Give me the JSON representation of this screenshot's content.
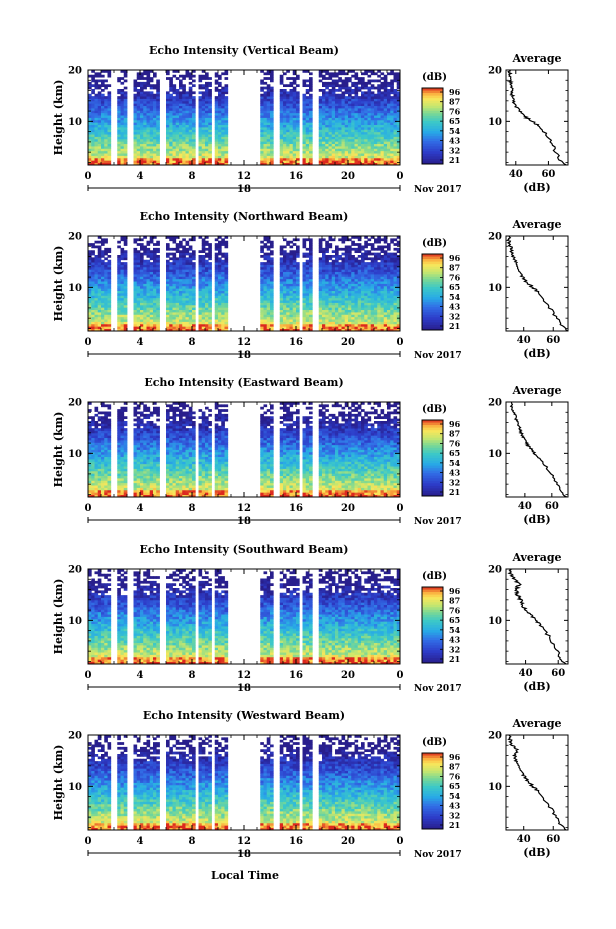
{
  "figure": {
    "xlabel": "Local Time",
    "ylabel": "Height (km)",
    "date_label": "Nov 2017",
    "colorbar_unit": "(dB)",
    "colorbar_ticks": [
      "96",
      "87",
      "76",
      "65",
      "54",
      "43",
      "32",
      "21"
    ],
    "colorbar_colors": [
      "#d7191c",
      "#f46d43",
      "#fdae61",
      "#fee08b",
      "#e6f598",
      "#abdda4",
      "#66c2a5",
      "#3288bd",
      "#2b3ec9",
      "#3b22a8",
      "#2a1f8f"
    ],
    "profile_title": "Average",
    "profile_xlabel": "(dB)"
  },
  "chart_data": [
    {
      "type": "heatmap",
      "title": "Echo Intensity (Vertical Beam)",
      "xlabel": "Local Time",
      "ylabel": "Height (km)",
      "x_ticks": [
        "0",
        "4",
        "8",
        "12",
        "16",
        "20",
        "0"
      ],
      "y_ticks": [
        "10",
        "20"
      ],
      "day_label": "18",
      "date_label": "Nov 2017",
      "xlim": [
        0,
        24
      ],
      "ylim": [
        1.5,
        20
      ],
      "colorbar": {
        "label": "(dB)",
        "ticks": [
          "96",
          "87",
          "76",
          "65",
          "54",
          "43",
          "32",
          "21"
        ]
      },
      "data_gaps_hours": [
        [
          1.8,
          2.3
        ],
        [
          3.1,
          3.6
        ],
        [
          5.6,
          6.1
        ],
        [
          8.2,
          8.6
        ],
        [
          9.4,
          9.8
        ],
        [
          10.8,
          13.2
        ],
        [
          14.2,
          14.7
        ],
        [
          16.3,
          16.6
        ],
        [
          17.2,
          17.8
        ]
      ],
      "profile": {
        "title": "Average",
        "xlabel": "(dB)",
        "x_ticks": [
          "40",
          "60"
        ],
        "xlim": [
          34,
          72
        ],
        "y_ticks": [
          "10",
          "20"
        ],
        "ylim": [
          1.5,
          20
        ],
        "height": [
          1.5,
          3,
          5,
          7,
          9,
          10,
          11,
          12,
          13,
          14,
          15,
          16,
          17,
          18,
          19,
          20
        ],
        "intensity": [
          70,
          66,
          63,
          60,
          55,
          50,
          45,
          42,
          40,
          39,
          38,
          37,
          38,
          36,
          37,
          36
        ]
      }
    },
    {
      "type": "heatmap",
      "title": "Echo Intensity (Northward Beam)",
      "xlabel": "Local Time",
      "ylabel": "Height (km)",
      "x_ticks": [
        "0",
        "4",
        "8",
        "12",
        "16",
        "20",
        "0"
      ],
      "y_ticks": [
        "10",
        "20"
      ],
      "day_label": "18",
      "date_label": "Nov 2017",
      "xlim": [
        0,
        24
      ],
      "ylim": [
        1.5,
        20
      ],
      "colorbar": {
        "label": "(dB)",
        "ticks": [
          "96",
          "87",
          "76",
          "65",
          "54",
          "43",
          "32",
          "21"
        ]
      },
      "data_gaps_hours": [
        [
          1.8,
          2.3
        ],
        [
          3.1,
          3.6
        ],
        [
          5.6,
          6.1
        ],
        [
          8.2,
          8.6
        ],
        [
          9.4,
          9.8
        ],
        [
          10.8,
          13.2
        ],
        [
          14.2,
          14.7
        ],
        [
          16.3,
          16.6
        ],
        [
          17.2,
          17.8
        ]
      ],
      "profile": {
        "title": "Average",
        "xlabel": "(dB)",
        "x_ticks": [
          "40",
          "60"
        ],
        "xlim": [
          28,
          70
        ],
        "y_ticks": [
          "10",
          "20"
        ],
        "ylim": [
          1.5,
          20
        ],
        "height": [
          1.5,
          3,
          5,
          7,
          9,
          10,
          11,
          12,
          13,
          14,
          15,
          16,
          17,
          18,
          19,
          20
        ],
        "intensity": [
          69,
          65,
          60,
          55,
          50,
          46,
          42,
          39,
          37,
          36,
          35,
          33,
          32,
          31,
          30,
          30
        ]
      }
    },
    {
      "type": "heatmap",
      "title": "Echo Intensity (Eastward Beam)",
      "xlabel": "Local Time",
      "ylabel": "Height (km)",
      "x_ticks": [
        "0",
        "4",
        "8",
        "12",
        "16",
        "20",
        "0"
      ],
      "y_ticks": [
        "10",
        "20"
      ],
      "day_label": "18",
      "date_label": "Nov 2017",
      "xlim": [
        0,
        24
      ],
      "ylim": [
        1.5,
        20
      ],
      "colorbar": {
        "label": "(dB)",
        "ticks": [
          "96",
          "87",
          "76",
          "65",
          "54",
          "43",
          "32",
          "21"
        ]
      },
      "data_gaps_hours": [
        [
          1.8,
          2.3
        ],
        [
          3.1,
          3.6
        ],
        [
          5.6,
          6.1
        ],
        [
          8.2,
          8.6
        ],
        [
          9.4,
          9.8
        ],
        [
          10.8,
          13.2
        ],
        [
          14.2,
          14.7
        ],
        [
          16.3,
          16.6
        ],
        [
          17.2,
          17.8
        ]
      ],
      "profile": {
        "title": "Average",
        "xlabel": "(dB)",
        "x_ticks": [
          "40",
          "60"
        ],
        "xlim": [
          26,
          72
        ],
        "y_ticks": [
          "10",
          "20"
        ],
        "ylim": [
          1.5,
          20
        ],
        "height": [
          1.5,
          3,
          5,
          7,
          9,
          10,
          11,
          12,
          13,
          14,
          15,
          16,
          17,
          18,
          19,
          20
        ],
        "intensity": [
          70,
          66,
          62,
          57,
          51,
          47,
          44,
          41,
          39,
          37,
          36,
          35,
          33,
          32,
          30,
          30
        ]
      }
    },
    {
      "type": "heatmap",
      "title": "Echo Intensity (Southward Beam)",
      "xlabel": "Local Time",
      "ylabel": "Height (km)",
      "x_ticks": [
        "0",
        "4",
        "8",
        "12",
        "16",
        "20",
        "0"
      ],
      "y_ticks": [
        "10",
        "20"
      ],
      "day_label": "18",
      "date_label": "Nov 2017",
      "xlim": [
        0,
        24
      ],
      "ylim": [
        1.5,
        20
      ],
      "colorbar": {
        "label": "(dB)",
        "ticks": [
          "96",
          "87",
          "76",
          "65",
          "54",
          "43",
          "32",
          "21"
        ]
      },
      "data_gaps_hours": [
        [
          1.8,
          2.3
        ],
        [
          3.1,
          3.6
        ],
        [
          5.6,
          6.1
        ],
        [
          8.2,
          8.6
        ],
        [
          9.4,
          9.8
        ],
        [
          10.8,
          13.2
        ],
        [
          14.2,
          14.7
        ],
        [
          16.3,
          16.6
        ],
        [
          17.2,
          17.8
        ]
      ],
      "profile": {
        "title": "Average",
        "xlabel": "(dB)",
        "x_ticks": [
          "40",
          "60"
        ],
        "xlim": [
          28,
          66
        ],
        "y_ticks": [
          "10",
          "20"
        ],
        "ylim": [
          1.5,
          20
        ],
        "height": [
          1.5,
          3,
          5,
          7,
          9,
          10,
          11,
          12,
          13,
          14,
          15,
          16,
          17,
          18,
          19,
          20
        ],
        "intensity": [
          64,
          61,
          58,
          54,
          49,
          46,
          43,
          40,
          38,
          37,
          35,
          34,
          36,
          33,
          31,
          30
        ]
      }
    },
    {
      "type": "heatmap",
      "title": "Echo Intensity (Westward Beam)",
      "xlabel": "Local Time",
      "ylabel": "Height (km)",
      "x_ticks": [
        "0",
        "4",
        "8",
        "12",
        "16",
        "20",
        "0"
      ],
      "y_ticks": [
        "10",
        "20"
      ],
      "day_label": "18",
      "date_label": "Nov 2017",
      "xlim": [
        0,
        24
      ],
      "ylim": [
        1.5,
        20
      ],
      "colorbar": {
        "label": "(dB)",
        "ticks": [
          "96",
          "87",
          "76",
          "65",
          "54",
          "43",
          "32",
          "21"
        ]
      },
      "data_gaps_hours": [
        [
          1.8,
          2.3
        ],
        [
          3.1,
          3.6
        ],
        [
          5.6,
          6.1
        ],
        [
          8.2,
          8.6
        ],
        [
          9.4,
          9.8
        ],
        [
          10.8,
          13.2
        ],
        [
          14.2,
          14.7
        ],
        [
          16.3,
          16.6
        ],
        [
          17.2,
          17.8
        ]
      ],
      "profile": {
        "title": "Average",
        "xlabel": "(dB)",
        "x_ticks": [
          "40",
          "60"
        ],
        "xlim": [
          28,
          70
        ],
        "y_ticks": [
          "10",
          "20"
        ],
        "ylim": [
          1.5,
          20
        ],
        "height": [
          1.5,
          3,
          5,
          7,
          9,
          10,
          11,
          12,
          13,
          14,
          15,
          16,
          17,
          18,
          19,
          20
        ],
        "intensity": [
          68,
          64,
          60,
          55,
          50,
          46,
          43,
          40,
          38,
          37,
          35,
          34,
          36,
          32,
          31,
          30
        ]
      }
    }
  ]
}
